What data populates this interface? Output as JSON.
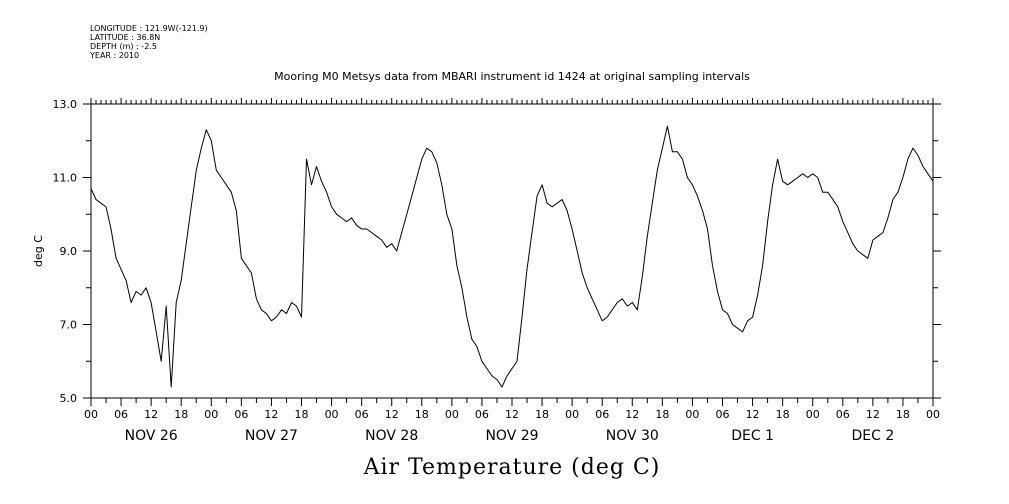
{
  "header": {
    "meta_lines": [
      "LONGITUDE : 121.9W(-121.9)",
      "LATITUDE : 36.8N",
      "DEPTH (m) : -2.5",
      "YEAR : 2010"
    ],
    "title": "Mooring M0 Metsys data from MBARI instrument id 1424 at original sampling intervals"
  },
  "chart_data": {
    "type": "line",
    "title": "Mooring M0 Metsys data from MBARI instrument id 1424 at original sampling intervals",
    "xlabel": "Air Temperature (deg C)",
    "ylabel": "deg C",
    "ylim": [
      5.0,
      13.0
    ],
    "xlim_hours": [
      0,
      168
    ],
    "y_tick_labels": [
      "5.0",
      "7.0",
      "9.0",
      "11.0",
      "13.0"
    ],
    "y_ticks": [
      5,
      7,
      9,
      11,
      13
    ],
    "x_hour_ticks_label": [
      "00",
      "06",
      "12",
      "18"
    ],
    "day_labels": [
      "NOV 26",
      "NOV 27",
      "NOV 28",
      "NOV 29",
      "NOV 30",
      "DEC  1",
      "DEC  2"
    ],
    "grid": false,
    "legend": "none",
    "line_color": "#000000",
    "series": [
      {
        "x_hours": [
          0,
          1,
          2,
          3,
          4,
          5,
          6,
          7,
          8,
          9,
          10,
          11,
          12,
          13,
          14,
          15,
          16,
          17,
          18,
          19,
          20,
          21,
          22,
          23,
          24,
          25,
          26,
          27,
          28,
          29,
          30,
          31,
          32,
          33,
          34,
          35,
          36,
          37,
          38,
          39,
          40,
          41,
          42,
          43,
          44,
          45,
          46,
          47,
          48,
          49,
          50,
          51,
          52,
          53,
          54,
          55,
          56,
          57,
          58,
          59,
          60,
          61,
          62,
          63,
          64,
          65,
          66,
          67,
          68,
          69,
          70,
          71,
          72,
          73,
          74,
          75,
          76,
          77,
          78,
          79,
          80,
          81,
          82,
          83,
          84,
          85,
          86,
          87,
          88,
          89,
          90,
          91,
          92,
          93,
          94,
          95,
          96,
          97,
          98,
          99,
          100,
          101,
          102,
          103,
          104,
          105,
          106,
          107,
          108,
          109,
          110,
          111,
          112,
          113,
          114,
          115,
          116,
          117,
          118,
          119,
          120,
          121,
          122,
          123,
          124,
          125,
          126,
          127,
          128,
          129,
          130,
          131,
          132,
          133,
          134,
          135,
          136,
          137,
          138,
          139,
          140,
          141,
          142,
          143,
          144,
          145,
          146,
          147,
          148,
          149,
          150,
          151,
          152,
          153,
          154,
          155,
          156,
          157,
          158,
          159,
          160,
          161,
          162,
          163,
          164,
          165,
          166,
          167,
          168
        ],
        "values": [
          10.7,
          10.4,
          10.3,
          10.2,
          9.6,
          8.8,
          8.5,
          8.2,
          7.6,
          7.9,
          7.8,
          8.0,
          7.6,
          6.8,
          6.0,
          7.5,
          5.3,
          7.6,
          8.2,
          9.2,
          10.2,
          11.2,
          11.8,
          12.3,
          12.0,
          11.2,
          11.0,
          10.8,
          10.6,
          10.1,
          8.8,
          8.6,
          8.4,
          7.7,
          7.4,
          7.3,
          7.1,
          7.2,
          7.4,
          7.3,
          7.6,
          7.5,
          7.2,
          11.5,
          10.8,
          11.3,
          10.9,
          10.6,
          10.2,
          10.0,
          9.9,
          9.8,
          9.9,
          9.7,
          9.6,
          9.6,
          9.5,
          9.4,
          9.3,
          9.1,
          9.2,
          9.0,
          9.5,
          10.0,
          10.5,
          11.0,
          11.5,
          11.8,
          11.7,
          11.4,
          10.8,
          10.0,
          9.6,
          8.6,
          8.0,
          7.2,
          6.6,
          6.4,
          6.0,
          5.8,
          5.6,
          5.5,
          5.3,
          5.6,
          5.8,
          6.0,
          7.2,
          8.5,
          9.5,
          10.5,
          10.8,
          10.3,
          10.2,
          10.3,
          10.4,
          10.1,
          9.6,
          9.0,
          8.4,
          8.0,
          7.7,
          7.4,
          7.1,
          7.2,
          7.4,
          7.6,
          7.7,
          7.5,
          7.6,
          7.4,
          8.3,
          9.4,
          10.3,
          11.2,
          11.8,
          12.4,
          11.7,
          11.7,
          11.5,
          11.0,
          10.8,
          10.5,
          10.1,
          9.6,
          8.6,
          7.9,
          7.4,
          7.3,
          7.0,
          6.9,
          6.8,
          7.1,
          7.2,
          7.8,
          8.6,
          9.8,
          10.8,
          11.5,
          10.9,
          10.8,
          10.9,
          11.0,
          11.1,
          11.0,
          11.1,
          11.0,
          10.6,
          10.6,
          10.4,
          10.2,
          9.8,
          9.5,
          9.2,
          9.0,
          8.9,
          8.8,
          9.3,
          9.4,
          9.5,
          9.9,
          10.4,
          10.6,
          11.0,
          11.5,
          11.8,
          11.6,
          11.3,
          11.1,
          10.9
        ]
      }
    ]
  }
}
